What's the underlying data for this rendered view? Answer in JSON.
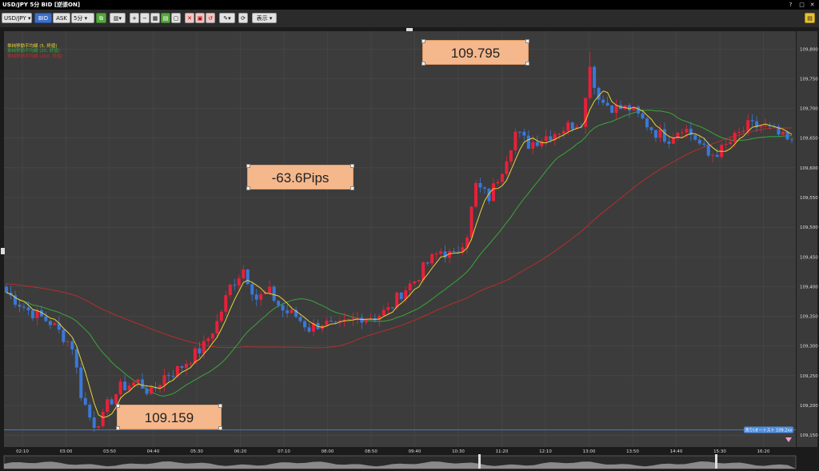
{
  "window": {
    "title": "USD/JPY 5分 BID [逆張ON]",
    "help": "?",
    "maximize": "□",
    "close": "✕"
  },
  "toolbar": {
    "pair": "USD/JPY ▾",
    "bid": "BID",
    "ask": "ASK",
    "timeframe": "5分 ▾",
    "view_menu": "表示 ▾",
    "icons": [
      "link-icon",
      "chart-type-icon",
      "zoom-in-icon",
      "zoom-out-icon",
      "grid-icon",
      "panel-icon",
      "window-icon",
      "delete-icon",
      "trash-icon",
      "clear-icon",
      "pen-icon",
      "refresh-icon",
      "settings-icon"
    ]
  },
  "legend": [
    {
      "label": "単純移動平均線 (5, 終値)",
      "color": "#e8d43a"
    },
    {
      "label": "単純移動平均線 (20, 終値)",
      "color": "#3aa63a"
    },
    {
      "label": "単純移動平均線 (200, 終値)",
      "color": "#c42b2b"
    }
  ],
  "annotations": {
    "high": "109.795",
    "pips": "-63.6Pips",
    "low": "109.159"
  },
  "price_tag": "売り(オートスト 109.2xx",
  "colors": {
    "up": "#e8203a",
    "down": "#3a78d8",
    "hline": "#3a78d8",
    "bg": "#3c3c3c",
    "grid": "#4a4a4a",
    "label_bg": "#f5b88c"
  },
  "chart_data": {
    "type": "candlestick",
    "ylim": [
      109.13,
      109.83
    ],
    "yticks": [
      109.15,
      109.2,
      109.25,
      109.3,
      109.35,
      109.4,
      109.45,
      109.5,
      109.55,
      109.6,
      109.65,
      109.7,
      109.75,
      109.8
    ],
    "yticklabels": [
      "109,150",
      "109,200",
      "109,250",
      "109,300",
      "109,350",
      "109,400",
      "109,450",
      "109,500",
      "109,550",
      "109,600",
      "109,650",
      "109,700",
      "109,750",
      "109,800"
    ],
    "xticklabels": [
      "02:10",
      "03:00",
      "03:50",
      "04:40",
      "05:30",
      "06:20",
      "07:10",
      "08:00",
      "08:50",
      "09:40",
      "10:30",
      "11:20",
      "12:10",
      "13:00",
      "13:50",
      "14:40",
      "15:30",
      "16:20"
    ],
    "bar_count": 180,
    "horizontal_line": 109.159,
    "anchors": [
      [
        0,
        109.39
      ],
      [
        5,
        109.36
      ],
      [
        10,
        109.34
      ],
      [
        15,
        109.3
      ],
      [
        17,
        109.22
      ],
      [
        19,
        109.18
      ],
      [
        21,
        109.159
      ],
      [
        23,
        109.2
      ],
      [
        26,
        109.23
      ],
      [
        30,
        109.24
      ],
      [
        33,
        109.22
      ],
      [
        36,
        109.25
      ],
      [
        39,
        109.26
      ],
      [
        42,
        109.28
      ],
      [
        45,
        109.3
      ],
      [
        48,
        109.34
      ],
      [
        51,
        109.4
      ],
      [
        54,
        109.43
      ],
      [
        57,
        109.38
      ],
      [
        60,
        109.39
      ],
      [
        63,
        109.36
      ],
      [
        66,
        109.35
      ],
      [
        69,
        109.33
      ],
      [
        72,
        109.34
      ],
      [
        75,
        109.33
      ],
      [
        78,
        109.34
      ],
      [
        81,
        109.35
      ],
      [
        84,
        109.35
      ],
      [
        87,
        109.36
      ],
      [
        90,
        109.39
      ],
      [
        93,
        109.41
      ],
      [
        96,
        109.44
      ],
      [
        99,
        109.46
      ],
      [
        102,
        109.45
      ],
      [
        105,
        109.49
      ],
      [
        107,
        109.57
      ],
      [
        110,
        109.55
      ],
      [
        113,
        109.6
      ],
      [
        116,
        109.66
      ],
      [
        119,
        109.64
      ],
      [
        122,
        109.65
      ],
      [
        125,
        109.66
      ],
      [
        128,
        109.67
      ],
      [
        131,
        109.68
      ],
      [
        133,
        109.75
      ],
      [
        136,
        109.71
      ],
      [
        139,
        109.7
      ],
      [
        142,
        109.7
      ],
      [
        145,
        109.68
      ],
      [
        148,
        109.66
      ],
      [
        151,
        109.65
      ],
      [
        154,
        109.67
      ],
      [
        157,
        109.65
      ],
      [
        160,
        109.62
      ],
      [
        163,
        109.63
      ],
      [
        166,
        109.65
      ],
      [
        169,
        109.67
      ],
      [
        172,
        109.67
      ],
      [
        175,
        109.66
      ],
      [
        179,
        109.64
      ]
    ]
  }
}
